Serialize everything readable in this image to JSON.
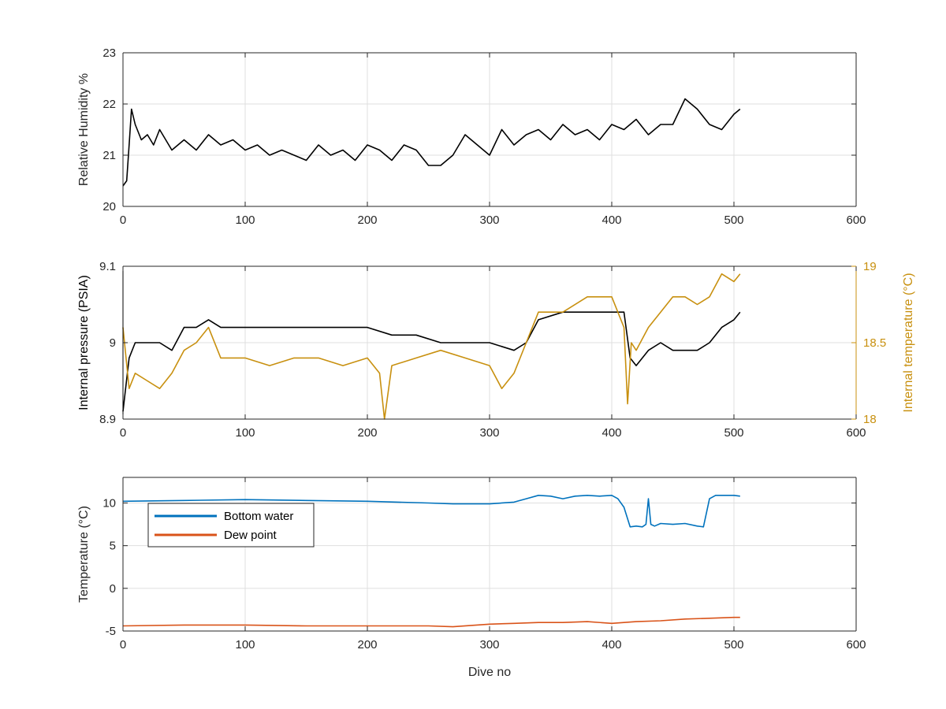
{
  "chart_data": [
    {
      "type": "line",
      "ylabel": "Relative Humidity %",
      "xlim": [
        0,
        600
      ],
      "ylim": [
        20,
        23
      ],
      "xticks": [
        0,
        100,
        200,
        300,
        400,
        500,
        600
      ],
      "yticks": [
        20,
        21,
        22,
        23
      ],
      "x_tick_labels": [
        "0",
        "100",
        "200",
        "300",
        "400",
        "500",
        "600"
      ],
      "y_tick_labels": [
        "20",
        "21",
        "22",
        "23"
      ],
      "grid": true,
      "series": [
        {
          "color": "#000000",
          "x": [
            0,
            3,
            5,
            7,
            10,
            15,
            20,
            25,
            30,
            40,
            50,
            60,
            70,
            80,
            90,
            100,
            110,
            120,
            130,
            140,
            150,
            160,
            170,
            180,
            190,
            200,
            210,
            220,
            230,
            240,
            250,
            260,
            270,
            280,
            290,
            300,
            310,
            320,
            330,
            340,
            350,
            360,
            370,
            380,
            390,
            400,
            410,
            420,
            430,
            440,
            450,
            460,
            470,
            480,
            490,
            500,
            505
          ],
          "y": [
            20.4,
            20.5,
            21.2,
            21.9,
            21.6,
            21.3,
            21.4,
            21.2,
            21.5,
            21.1,
            21.3,
            21.1,
            21.4,
            21.2,
            21.3,
            21.1,
            21.2,
            21.0,
            21.1,
            21.0,
            20.9,
            21.2,
            21.0,
            21.1,
            20.9,
            21.2,
            21.1,
            20.9,
            21.2,
            21.1,
            20.8,
            20.8,
            21.0,
            21.4,
            21.2,
            21.0,
            21.5,
            21.2,
            21.4,
            21.5,
            21.3,
            21.6,
            21.4,
            21.5,
            21.3,
            21.6,
            21.5,
            21.7,
            21.4,
            21.6,
            21.6,
            22.1,
            21.9,
            21.6,
            21.5,
            21.8,
            21.9
          ]
        }
      ]
    },
    {
      "type": "line",
      "ylabel": "Internal pressure (PSIA)",
      "y2label": "Internal temperature (°C)",
      "xlim": [
        0,
        600
      ],
      "ylim": [
        8.9,
        9.1
      ],
      "y2lim": [
        18,
        19
      ],
      "xticks": [
        0,
        100,
        200,
        300,
        400,
        500,
        600
      ],
      "yticks": [
        8.9,
        9.0,
        9.1
      ],
      "y2ticks": [
        18,
        18.5,
        19
      ],
      "x_tick_labels": [
        "0",
        "100",
        "200",
        "300",
        "400",
        "500",
        "600"
      ],
      "y_tick_labels": [
        "8.9",
        "9",
        "9.1"
      ],
      "y2_tick_labels": [
        "18",
        "18.5",
        "19"
      ],
      "grid": true,
      "series": [
        {
          "axis": "left",
          "color": "#000000",
          "x": [
            0,
            5,
            10,
            20,
            30,
            40,
            50,
            60,
            70,
            80,
            90,
            100,
            120,
            140,
            160,
            180,
            200,
            220,
            240,
            260,
            280,
            300,
            320,
            330,
            340,
            360,
            380,
            400,
            410,
            415,
            420,
            430,
            440,
            450,
            460,
            470,
            480,
            490,
            500,
            505
          ],
          "y": [
            8.91,
            8.98,
            9.0,
            9.0,
            9.0,
            8.99,
            9.02,
            9.02,
            9.03,
            9.02,
            9.02,
            9.02,
            9.02,
            9.02,
            9.02,
            9.02,
            9.02,
            9.01,
            9.01,
            9.0,
            9.0,
            9.0,
            8.99,
            9.0,
            9.03,
            9.04,
            9.04,
            9.04,
            9.04,
            8.98,
            8.97,
            8.99,
            9.0,
            8.99,
            8.99,
            8.99,
            9.0,
            9.02,
            9.03,
            9.04
          ]
        },
        {
          "axis": "right",
          "color": "#C8900F",
          "x": [
            0,
            5,
            10,
            20,
            30,
            40,
            50,
            60,
            70,
            80,
            90,
            100,
            120,
            140,
            160,
            180,
            200,
            210,
            214,
            220,
            240,
            260,
            280,
            300,
            310,
            320,
            330,
            340,
            360,
            380,
            400,
            410,
            413,
            416,
            420,
            430,
            440,
            450,
            460,
            470,
            480,
            490,
            500,
            505
          ],
          "y": [
            18.6,
            18.2,
            18.3,
            18.25,
            18.2,
            18.3,
            18.45,
            18.5,
            18.6,
            18.4,
            18.4,
            18.4,
            18.35,
            18.4,
            18.4,
            18.35,
            18.4,
            18.3,
            18.0,
            18.35,
            18.4,
            18.45,
            18.4,
            18.35,
            18.2,
            18.3,
            18.5,
            18.7,
            18.7,
            18.8,
            18.8,
            18.6,
            18.1,
            18.5,
            18.45,
            18.6,
            18.7,
            18.8,
            18.8,
            18.75,
            18.8,
            18.95,
            18.9,
            18.95
          ]
        }
      ]
    },
    {
      "type": "line",
      "xlabel": "Dive no",
      "ylabel": "Temperature (°C)",
      "xlim": [
        0,
        600
      ],
      "ylim": [
        -5,
        13
      ],
      "xticks": [
        0,
        100,
        200,
        300,
        400,
        500,
        600
      ],
      "yticks": [
        -5,
        0,
        5,
        10
      ],
      "x_tick_labels": [
        "0",
        "100",
        "200",
        "300",
        "400",
        "500",
        "600"
      ],
      "y_tick_labels": [
        "-5",
        "0",
        "5",
        "10"
      ],
      "grid": true,
      "legend": "top-left",
      "series": [
        {
          "name": "Bottom water",
          "color": "#0072BD",
          "x": [
            0,
            50,
            100,
            150,
            200,
            250,
            270,
            300,
            320,
            330,
            340,
            350,
            360,
            370,
            380,
            390,
            400,
            405,
            410,
            415,
            420,
            425,
            428,
            430,
            432,
            435,
            440,
            450,
            460,
            470,
            475,
            480,
            485,
            490,
            500,
            505
          ],
          "y": [
            10.2,
            10.3,
            10.4,
            10.3,
            10.2,
            10.0,
            9.9,
            9.9,
            10.1,
            10.5,
            10.9,
            10.8,
            10.5,
            10.8,
            10.9,
            10.8,
            10.9,
            10.5,
            9.5,
            7.2,
            7.3,
            7.2,
            7.5,
            10.5,
            7.5,
            7.3,
            7.6,
            7.5,
            7.6,
            7.3,
            7.2,
            10.5,
            10.9,
            10.9,
            10.9,
            10.8
          ]
        },
        {
          "name": "Dew point",
          "color": "#D95319",
          "x": [
            0,
            50,
            100,
            150,
            200,
            250,
            270,
            300,
            320,
            340,
            360,
            380,
            400,
            420,
            440,
            460,
            480,
            500,
            505
          ],
          "y": [
            -4.4,
            -4.3,
            -4.3,
            -4.4,
            -4.4,
            -4.4,
            -4.5,
            -4.2,
            -4.1,
            -4.0,
            -4.0,
            -3.9,
            -4.1,
            -3.9,
            -3.8,
            -3.6,
            -3.5,
            -3.4,
            -3.4
          ]
        }
      ]
    }
  ]
}
